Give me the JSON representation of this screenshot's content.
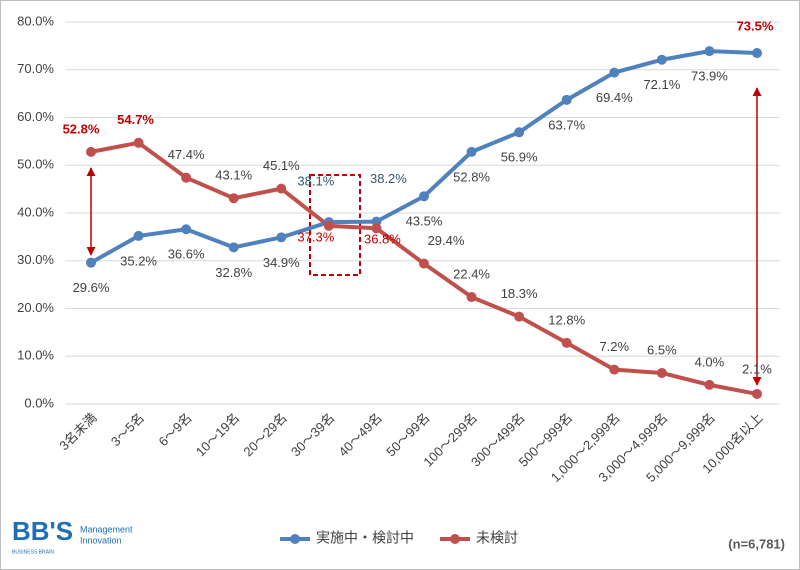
{
  "chart_data": {
    "type": "line",
    "categories": [
      "3名未満",
      "3～5名",
      "6～9名",
      "10～19名",
      "20～29名",
      "30～39名",
      "40～49名",
      "50～99名",
      "100～299名",
      "300～499名",
      "500～999名",
      "1,000～2,999名",
      "3,000～4,999名",
      "5,000～9,999名",
      "10,000名以上"
    ],
    "series": [
      {
        "name": "実施中・検討中",
        "color": "#4f81bd",
        "values": [
          29.6,
          35.2,
          36.6,
          32.8,
          34.9,
          38.1,
          38.2,
          43.5,
          52.8,
          56.9,
          63.7,
          69.4,
          72.1,
          73.9,
          73.5
        ],
        "value_labels": [
          "29.6%",
          "35.2%",
          "36.6%",
          "32.8%",
          "34.9%",
          "38.1%",
          "38.2%",
          "43.5%",
          "52.8%",
          "56.9%",
          "63.7%",
          "69.4%",
          "72.1%",
          "73.9%",
          "73.5%"
        ]
      },
      {
        "name": "未検討",
        "color": "#c0504d",
        "values": [
          52.8,
          54.7,
          47.4,
          43.1,
          45.1,
          37.3,
          36.8,
          29.4,
          22.4,
          18.3,
          12.8,
          7.2,
          6.5,
          4.0,
          2.1
        ],
        "value_labels": [
          "52.8%",
          "54.7%",
          "47.4%",
          "43.1%",
          "45.1%",
          "37.3%",
          "36.8%",
          "29.4%",
          "22.4%",
          "18.3%",
          "12.8%",
          "7.2%",
          "6.5%",
          "4.0%",
          "2.1%"
        ]
      }
    ],
    "ylim": [
      0,
      80
    ],
    "yticks": [
      {
        "value": 0,
        "label": "0.0%"
      },
      {
        "value": 10,
        "label": "10.0%"
      },
      {
        "value": 20,
        "label": "20.0%"
      },
      {
        "value": 30,
        "label": "30.0%"
      },
      {
        "value": 40,
        "label": "40.0%"
      },
      {
        "value": 50,
        "label": "50.0%"
      },
      {
        "value": 60,
        "label": "60.0%"
      },
      {
        "value": 70,
        "label": "70.0%"
      },
      {
        "value": 80,
        "label": "80.0%"
      }
    ],
    "grid": true,
    "note": "(n=6,781)"
  },
  "logo": {
    "mark": "BB'S",
    "line1": "Management",
    "line2": "Innovation",
    "sub": "BUSINESS BRAIN"
  }
}
